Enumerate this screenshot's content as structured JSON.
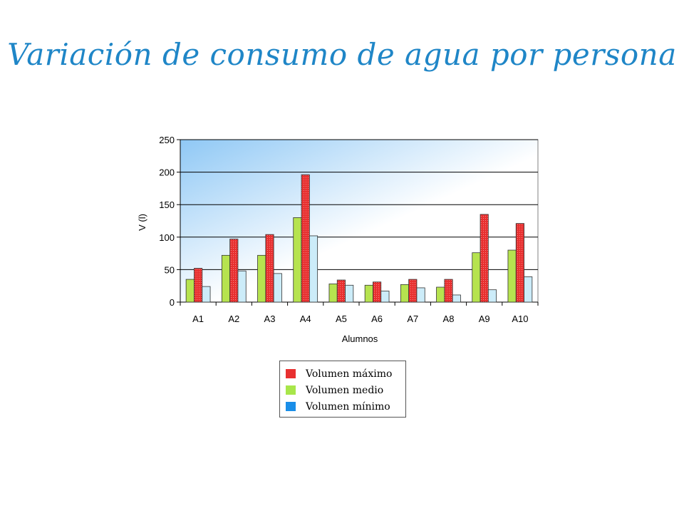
{
  "slide": {
    "title": "Variación de consumo de agua por persona"
  },
  "chart_data": {
    "type": "bar",
    "title": "",
    "xlabel": "Alumnos",
    "ylabel": "V (l)",
    "ylim": [
      0,
      250
    ],
    "yticks": [
      0,
      50,
      100,
      150,
      200,
      250
    ],
    "grid": true,
    "legend_position": "bottom",
    "categories": [
      "A1",
      "A2",
      "A3",
      "A4",
      "A5",
      "A6",
      "A7",
      "A8",
      "A9",
      "A10"
    ],
    "series": [
      {
        "name": "Volumen medio",
        "color": "#b6e34f",
        "values": [
          35,
          72,
          72,
          130,
          28,
          26,
          27,
          23,
          76,
          80
        ]
      },
      {
        "name": "Volumen máximo",
        "color": "#e83030",
        "values": [
          52,
          97,
          104,
          196,
          34,
          31,
          35,
          35,
          135,
          121
        ]
      },
      {
        "name": "Volumen mínimo",
        "color": "#ccecf9",
        "values": [
          24,
          48,
          44,
          102,
          26,
          17,
          22,
          11,
          19,
          39
        ]
      }
    ],
    "legend_order": [
      "Volumen máximo",
      "Volumen medio",
      "Volumen mínimo"
    ],
    "legend_colors": [
      "#e83030",
      "#a8e64a",
      "#1a8ee8"
    ]
  }
}
